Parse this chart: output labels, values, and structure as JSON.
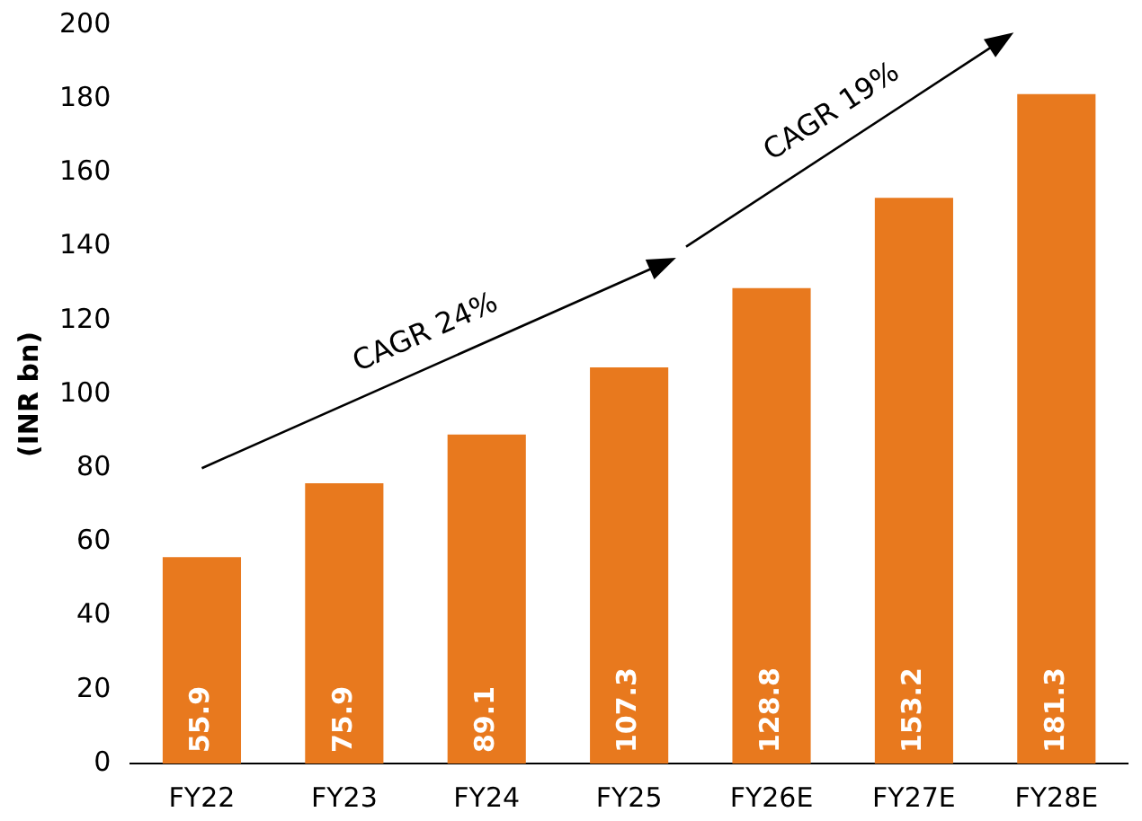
{
  "chart_data": {
    "type": "bar",
    "ylabel": "(INR bn)",
    "categories": [
      "FY22",
      "FY23",
      "FY24",
      "FY25",
      "FY26E",
      "FY27E",
      "FY28E"
    ],
    "values": [
      55.9,
      75.9,
      89.1,
      107.3,
      128.8,
      153.2,
      181.3
    ],
    "color": "#e8791e",
    "ylim": [
      0,
      200
    ],
    "yticks": [
      0,
      20,
      40,
      60,
      80,
      100,
      120,
      140,
      160,
      180,
      200
    ],
    "grid": false,
    "legend": false,
    "data_labels": true,
    "annotations": [
      "CAGR 24%",
      "CAGR 19%"
    ]
  }
}
